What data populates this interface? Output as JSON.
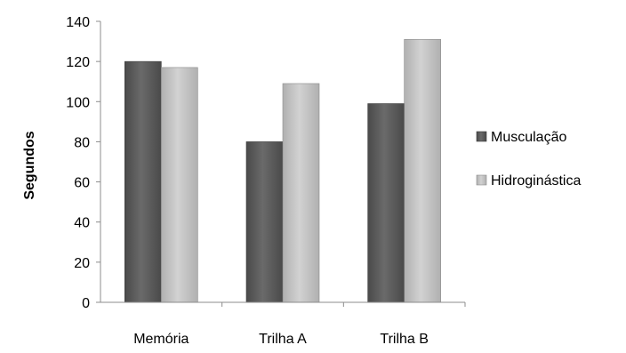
{
  "chart_data": {
    "type": "bar",
    "categories": [
      "Memória",
      "Trilha A",
      "Trilha B"
    ],
    "series": [
      {
        "name": "Musculação",
        "values": [
          120,
          80,
          99
        ],
        "color": "#555555"
      },
      {
        "name": "Hidroginástica",
        "values": [
          117,
          109,
          131
        ],
        "color": "#bdbdbd"
      }
    ],
    "title": "",
    "xlabel": "",
    "ylabel": "Segundos",
    "ylim": [
      0,
      140
    ],
    "yticks": [
      "0",
      "20",
      "40",
      "60",
      "80",
      "100",
      "120",
      "140"
    ],
    "grid": false,
    "legend_position": "right"
  }
}
